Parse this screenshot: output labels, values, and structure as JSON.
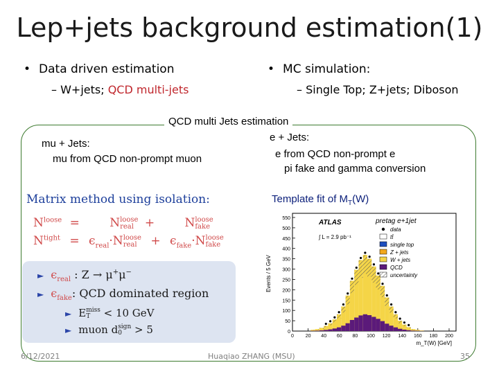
{
  "title": "Lep+jets background estimation(1)",
  "left_bullet": {
    "marker": "•",
    "text": "Data driven estimation",
    "sub_dash": "–",
    "sub_prefix": "W+jets; ",
    "sub_red": "QCD multi-jets"
  },
  "right_bullet": {
    "marker": "•",
    "text": "MC simulation:",
    "sub_dash": "–",
    "sub_text": "Single Top; Z+jets; Diboson"
  },
  "qcd_box": {
    "title": "QCD multi Jets estimation",
    "mu_heading": "mu + Jets:",
    "mu_desc": "mu from QCD non-prompt muon",
    "e_heading": "e + Jets:",
    "e_desc1": "e from QCD non-prompt e",
    "e_desc2": "pi fake and gamma conversion",
    "template_prefix": "Template fit of M",
    "template_sub": "T",
    "template_suffix": "(W)"
  },
  "matrix": {
    "heading_1": "Matrix method",
    "heading_2": " using isolation:",
    "eq1": {
      "lhs": "N",
      "lhs_sup": "loose",
      "eqs": "=",
      "t1": "N",
      "t1_sup": "loose",
      "t1_sub": "real",
      "plus": "+",
      "t2": "N",
      "t2_sup": "loose",
      "t2_sub": "fake"
    },
    "eq2": {
      "lhs": "N",
      "lhs_sup": "tight",
      "eqs": "=",
      "e1": "ϵ",
      "e1_sub": "real",
      "t1": "·N",
      "t1_sup": "loose",
      "t1_sub": "real",
      "plus": "+",
      "e2": "ϵ",
      "e2_sub": "fake",
      "t2": "·N",
      "t2_sup": "loose",
      "t2_sub": "fake"
    }
  },
  "panel": {
    "marker": "►",
    "r1_eps": "ϵ",
    "r1_sub": "real",
    "r1_text": " :  Z → μ",
    "r1_sup1": "+",
    "r1_mid": "μ",
    "r1_sup2": "−",
    "r2_eps": "ϵ",
    "r2_sub": "fake",
    "r2_text": ":  QCD dominated region",
    "r3_e": "E",
    "r3_sup": "miss",
    "r3_sub": "T",
    "r3_text": " < 10 GeV",
    "r4_text": "muon d",
    "r4_sup": "sign",
    "r4_sub": "0",
    "r4_tail": " > 5"
  },
  "plot": {
    "ylabel": "Events / 5 GeV",
    "atlas_label": "ATLAS",
    "channel_label": "pretag e+1jet",
    "lumi_label": "∫ L = 2.9 pb⁻¹",
    "xlabel": "m_T(W) [GeV]",
    "y_ticks": [
      "0",
      "50",
      "100",
      "150",
      "200",
      "250",
      "300",
      "350",
      "400",
      "450",
      "500",
      "550"
    ],
    "x_ticks": [
      "0",
      "20",
      "40",
      "60",
      "80",
      "100",
      "120",
      "140",
      "160",
      "180",
      "200"
    ],
    "legend": [
      {
        "label": "data",
        "color": "#000000",
        "kind": "dot"
      },
      {
        "label": "tt̄",
        "color": "#ffffff",
        "kind": "box"
      },
      {
        "label": "single top",
        "color": "#1f4fbf",
        "kind": "box"
      },
      {
        "label": "Z + jets",
        "color": "#f2a81d",
        "kind": "box"
      },
      {
        "label": "W + jets",
        "color": "#f5d547",
        "kind": "box"
      },
      {
        "label": "QCD",
        "color": "#5b1a7a",
        "kind": "box"
      },
      {
        "label": "uncertainty",
        "color": "#888888",
        "kind": "hatch"
      }
    ],
    "colors": {
      "qcd": "#5b1a7a",
      "wjets": "#f5d547",
      "zjets": "#f2a81d",
      "stop": "#1f4fbf"
    }
  },
  "footer": {
    "date": "6/12/2021",
    "author": "Huaqiao ZHANG (MSU)",
    "page": "35"
  },
  "colors": {
    "frame": "#3c7a2e",
    "red": "#c0272d",
    "blue": "#1d3f9b",
    "panel": "#dde4f1",
    "eq_red": "#d04a4a"
  }
}
